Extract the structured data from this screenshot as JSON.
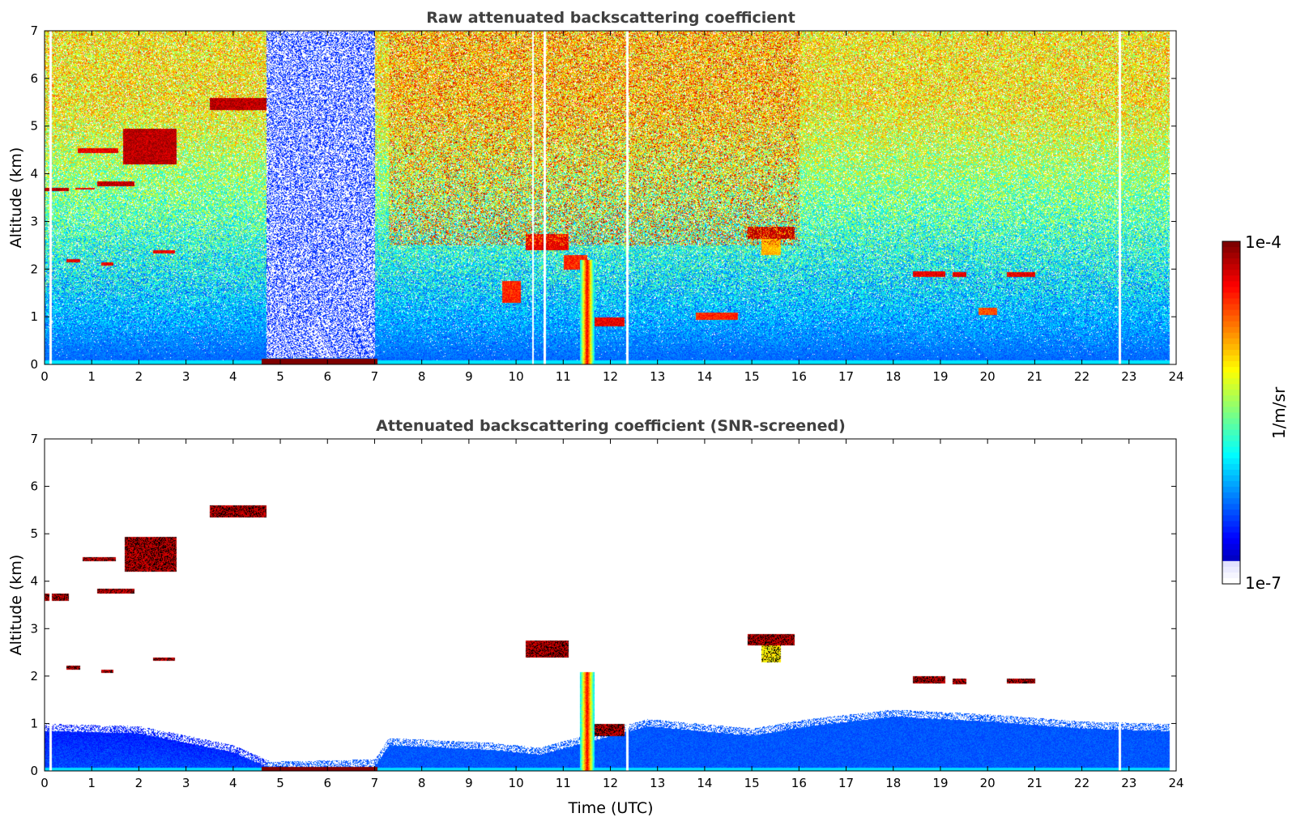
{
  "chart_data": [
    {
      "type": "heatmap",
      "title": "Raw attenuated backscattering coefficient",
      "xlabel": "",
      "ylabel": "Altitude (km)",
      "xlim": [
        0,
        24
      ],
      "ylim": [
        0,
        7
      ],
      "x_ticks": [
        "0",
        "1",
        "2",
        "3",
        "4",
        "5",
        "6",
        "7",
        "8",
        "9",
        "10",
        "11",
        "12",
        "13",
        "14",
        "15",
        "16",
        "17",
        "18",
        "19",
        "20",
        "21",
        "22",
        "23",
        "24"
      ],
      "y_ticks": [
        "0",
        "1",
        "2",
        "3",
        "4",
        "5",
        "6",
        "7"
      ],
      "colormap": "jet",
      "background": "noisy",
      "features": [
        {
          "kind": "cloud",
          "t": [
            0.0,
            0.5
          ],
          "alt": [
            3.65,
            3.72
          ],
          "intensity": 1.0
        },
        {
          "kind": "cloud",
          "t": [
            0.65,
            1.05
          ],
          "alt": [
            3.68,
            3.72
          ],
          "intensity": 0.95
        },
        {
          "kind": "cloud",
          "t": [
            1.1,
            1.9
          ],
          "alt": [
            3.75,
            3.85
          ],
          "intensity": 1.0
        },
        {
          "kind": "cloud",
          "t": [
            0.7,
            1.55
          ],
          "alt": [
            4.45,
            4.55
          ],
          "intensity": 0.95
        },
        {
          "kind": "cloud",
          "t": [
            1.65,
            2.8
          ],
          "alt": [
            4.2,
            4.95
          ],
          "intensity": 1.0
        },
        {
          "kind": "cloud",
          "t": [
            3.5,
            4.7
          ],
          "alt": [
            5.35,
            5.6
          ],
          "intensity": 1.0
        },
        {
          "kind": "cloud",
          "t": [
            0.45,
            0.75
          ],
          "alt": [
            2.15,
            2.22
          ],
          "intensity": 0.95
        },
        {
          "kind": "cloud",
          "t": [
            1.2,
            1.45
          ],
          "alt": [
            2.08,
            2.15
          ],
          "intensity": 0.95
        },
        {
          "kind": "cloud",
          "t": [
            2.3,
            2.75
          ],
          "alt": [
            2.33,
            2.4
          ],
          "intensity": 0.95
        },
        {
          "kind": "cloud",
          "t": [
            10.2,
            11.1
          ],
          "alt": [
            2.4,
            2.75
          ],
          "intensity": 0.95
        },
        {
          "kind": "cloud",
          "t": [
            11.0,
            11.5
          ],
          "alt": [
            2.0,
            2.3
          ],
          "intensity": 0.9
        },
        {
          "kind": "cloud",
          "t": [
            11.6,
            12.3
          ],
          "alt": [
            0.8,
            1.0
          ],
          "intensity": 0.95
        },
        {
          "kind": "cloud",
          "t": [
            9.7,
            10.1
          ],
          "alt": [
            1.3,
            1.75
          ],
          "intensity": 0.9
        },
        {
          "kind": "cloud",
          "t": [
            13.8,
            14.7
          ],
          "alt": [
            0.95,
            1.1
          ],
          "intensity": 0.9
        },
        {
          "kind": "cloud",
          "t": [
            14.9,
            15.9
          ],
          "alt": [
            2.65,
            2.9
          ],
          "intensity": 1.0
        },
        {
          "kind": "cloud",
          "t": [
            15.2,
            15.6
          ],
          "alt": [
            2.3,
            2.65
          ],
          "intensity": 0.75
        },
        {
          "kind": "cloud",
          "t": [
            18.4,
            19.1
          ],
          "alt": [
            1.85,
            1.97
          ],
          "intensity": 0.95
        },
        {
          "kind": "cloud",
          "t": [
            19.25,
            19.55
          ],
          "alt": [
            1.85,
            1.95
          ],
          "intensity": 0.95
        },
        {
          "kind": "cloud",
          "t": [
            20.4,
            21.0
          ],
          "alt": [
            1.85,
            1.95
          ],
          "intensity": 0.95
        },
        {
          "kind": "cloud",
          "t": [
            19.8,
            20.2
          ],
          "alt": [
            1.05,
            1.2
          ],
          "intensity": 0.85
        },
        {
          "kind": "plume",
          "t": [
            11.35,
            11.65
          ],
          "alt": [
            0.0,
            2.2
          ],
          "intensity": 0.75
        },
        {
          "kind": "surface",
          "t": [
            4.6,
            7.05
          ],
          "alt": [
            0.0,
            0.12
          ],
          "intensity": 1.0
        },
        {
          "kind": "quiet",
          "t": [
            4.7,
            7.0
          ],
          "alt": [
            0.15,
            7.0
          ],
          "intensity": 0.18
        },
        {
          "kind": "noisy",
          "t": [
            7.3,
            16.0
          ],
          "alt": [
            2.5,
            7.0
          ],
          "intensity": 0.72
        }
      ],
      "gaps_utc": [
        0.12,
        10.35,
        10.6,
        12.35,
        22.8
      ]
    },
    {
      "type": "heatmap",
      "title": "Attenuated backscattering coefficient (SNR-screened)",
      "xlabel": "Time (UTC)",
      "ylabel": "Altitude (km)",
      "xlim": [
        0,
        24
      ],
      "ylim": [
        0,
        7
      ],
      "x_ticks": [
        "0",
        "1",
        "2",
        "3",
        "4",
        "5",
        "6",
        "7",
        "8",
        "9",
        "10",
        "11",
        "12",
        "13",
        "14",
        "15",
        "16",
        "17",
        "18",
        "19",
        "20",
        "21",
        "22",
        "23",
        "24"
      ],
      "y_ticks": [
        "0",
        "1",
        "2",
        "3",
        "4",
        "5",
        "6",
        "7"
      ],
      "colormap": "jet",
      "background": "screened",
      "boundary_layer_top_km": [
        [
          0,
          1.0
        ],
        [
          2,
          0.95
        ],
        [
          4,
          0.55
        ],
        [
          4.8,
          0.2
        ],
        [
          7.0,
          0.25
        ],
        [
          7.3,
          0.7
        ],
        [
          9.5,
          0.6
        ],
        [
          10.5,
          0.5
        ],
        [
          12.8,
          1.1
        ],
        [
          15.0,
          0.9
        ],
        [
          16.2,
          1.1
        ],
        [
          18.0,
          1.3
        ],
        [
          20.0,
          1.2
        ],
        [
          22.0,
          1.05
        ],
        [
          23.8,
          1.0
        ]
      ],
      "features": [
        {
          "kind": "cloud",
          "t": [
            0.0,
            0.5
          ],
          "alt": [
            3.6,
            3.75
          ],
          "intensity": 1.0
        },
        {
          "kind": "cloud",
          "t": [
            1.1,
            1.9
          ],
          "alt": [
            3.75,
            3.85
          ],
          "intensity": 1.0
        },
        {
          "kind": "cloud",
          "t": [
            0.8,
            1.5
          ],
          "alt": [
            4.43,
            4.52
          ],
          "intensity": 1.0
        },
        {
          "kind": "cloud",
          "t": [
            1.7,
            2.8
          ],
          "alt": [
            4.2,
            4.95
          ],
          "intensity": 1.0
        },
        {
          "kind": "cloud",
          "t": [
            3.5,
            4.7
          ],
          "alt": [
            5.35,
            5.6
          ],
          "intensity": 1.0
        },
        {
          "kind": "cloud",
          "t": [
            0.45,
            0.75
          ],
          "alt": [
            2.15,
            2.22
          ],
          "intensity": 1.0
        },
        {
          "kind": "cloud",
          "t": [
            1.2,
            1.45
          ],
          "alt": [
            2.08,
            2.15
          ],
          "intensity": 1.0
        },
        {
          "kind": "cloud",
          "t": [
            2.3,
            2.75
          ],
          "alt": [
            2.33,
            2.4
          ],
          "intensity": 1.0
        },
        {
          "kind": "cloud",
          "t": [
            10.2,
            11.1
          ],
          "alt": [
            2.4,
            2.75
          ],
          "intensity": 1.0
        },
        {
          "kind": "cloud",
          "t": [
            11.6,
            12.3
          ],
          "alt": [
            0.75,
            1.0
          ],
          "intensity": 1.0
        },
        {
          "kind": "cloud",
          "t": [
            14.9,
            15.9
          ],
          "alt": [
            2.65,
            2.9
          ],
          "intensity": 1.0
        },
        {
          "kind": "cloud",
          "t": [
            15.2,
            15.6
          ],
          "alt": [
            2.3,
            2.65
          ],
          "intensity": 0.7
        },
        {
          "kind": "cloud",
          "t": [
            18.4,
            19.1
          ],
          "alt": [
            1.85,
            2.0
          ],
          "intensity": 1.0
        },
        {
          "kind": "cloud",
          "t": [
            19.25,
            19.55
          ],
          "alt": [
            1.83,
            1.95
          ],
          "intensity": 1.0
        },
        {
          "kind": "cloud",
          "t": [
            20.4,
            21.0
          ],
          "alt": [
            1.85,
            1.95
          ],
          "intensity": 1.0
        },
        {
          "kind": "plume",
          "t": [
            11.35,
            11.65
          ],
          "alt": [
            0.0,
            2.1
          ],
          "intensity": 0.75
        },
        {
          "kind": "surface",
          "t": [
            4.6,
            7.05
          ],
          "alt": [
            0.0,
            0.1
          ],
          "intensity": 1.0
        }
      ],
      "gaps_utc": [
        0.12,
        12.35,
        22.8
      ]
    }
  ],
  "colorbar": {
    "label": "1/m/sr",
    "max_label": "1e-4",
    "min_label": "1e-7"
  },
  "colors": {
    "outline": "#000000",
    "title": "#404040",
    "cloud_outline": "#000000"
  }
}
